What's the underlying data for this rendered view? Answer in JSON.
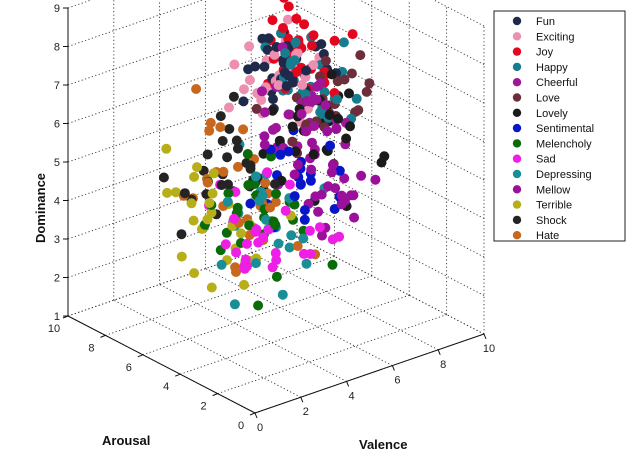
{
  "chart_data": {
    "type": "scatter",
    "projection": "3d",
    "xlabel": "Valence",
    "ylabel": "Arousal",
    "zlabel": "Dominance",
    "xlim": [
      0,
      10
    ],
    "ylim": [
      0,
      10
    ],
    "zlim": [
      1,
      9
    ],
    "x_ticks": [
      "0",
      "2",
      "4",
      "6",
      "8",
      "10"
    ],
    "y_ticks": [
      "0",
      "2",
      "4",
      "6",
      "8",
      "10"
    ],
    "z_ticks": [
      "1",
      "2",
      "3",
      "4",
      "5",
      "6",
      "7",
      "8",
      "9"
    ],
    "grid": true,
    "legend_position": "top-right",
    "series": [
      {
        "name": "Fun",
        "color": "#1f2a4a",
        "center": [
          7.0,
          6.6,
          6.8
        ],
        "spread": [
          1.4,
          1.4,
          1.0
        ],
        "count": 34
      },
      {
        "name": "Exciting",
        "color": "#ec8fb0",
        "center": [
          6.8,
          7.2,
          6.6
        ],
        "spread": [
          1.4,
          1.4,
          1.0
        ],
        "count": 32
      },
      {
        "name": "Joy",
        "color": "#e2061e",
        "center": [
          7.6,
          6.8,
          7.0
        ],
        "spread": [
          1.2,
          1.4,
          1.0
        ],
        "count": 34
      },
      {
        "name": "Happy",
        "color": "#167d8f",
        "center": [
          7.4,
          6.4,
          6.6
        ],
        "spread": [
          1.3,
          1.4,
          1.0
        ],
        "count": 32
      },
      {
        "name": "Cheerful",
        "color": "#a0169b",
        "center": [
          6.6,
          5.6,
          6.0
        ],
        "spread": [
          1.5,
          1.6,
          1.2
        ],
        "count": 30
      },
      {
        "name": "Love",
        "color": "#6b2e3a",
        "center": [
          7.0,
          5.2,
          6.2
        ],
        "spread": [
          1.5,
          1.6,
          1.2
        ],
        "count": 28
      },
      {
        "name": "Lovely",
        "color": "#1b1b1b",
        "center": [
          6.4,
          5.0,
          5.8
        ],
        "spread": [
          1.8,
          2.0,
          1.4
        ],
        "count": 30
      },
      {
        "name": "Sentimental",
        "color": "#0616c8",
        "center": [
          5.6,
          4.2,
          5.0
        ],
        "spread": [
          1.5,
          1.8,
          1.3
        ],
        "count": 26
      },
      {
        "name": "Melencholy",
        "color": "#0b6b0b",
        "center": [
          3.6,
          4.6,
          4.0
        ],
        "spread": [
          1.6,
          2.0,
          1.5
        ],
        "count": 30
      },
      {
        "name": "Sad",
        "color": "#ee1ee6",
        "center": [
          3.6,
          3.8,
          4.0
        ],
        "spread": [
          1.6,
          1.8,
          1.4
        ],
        "count": 30
      },
      {
        "name": "Depressing",
        "color": "#1a8e96",
        "center": [
          3.8,
          4.2,
          4.4
        ],
        "spread": [
          1.6,
          1.8,
          1.4
        ],
        "count": 24
      },
      {
        "name": "Mellow",
        "color": "#9b109b",
        "center": [
          5.4,
          4.0,
          5.2
        ],
        "spread": [
          1.6,
          1.8,
          1.3
        ],
        "count": 30
      },
      {
        "name": "Terrible",
        "color": "#b7ae1a",
        "center": [
          3.0,
          5.4,
          4.2
        ],
        "spread": [
          1.6,
          2.0,
          1.5
        ],
        "count": 28
      },
      {
        "name": "Shock",
        "color": "#242424",
        "center": [
          3.6,
          6.4,
          4.8
        ],
        "spread": [
          1.8,
          2.0,
          1.6
        ],
        "count": 26
      },
      {
        "name": "Hate",
        "color": "#c8681e",
        "center": [
          3.8,
          5.8,
          4.6
        ],
        "spread": [
          1.8,
          2.0,
          1.6
        ],
        "count": 28
      }
    ]
  }
}
